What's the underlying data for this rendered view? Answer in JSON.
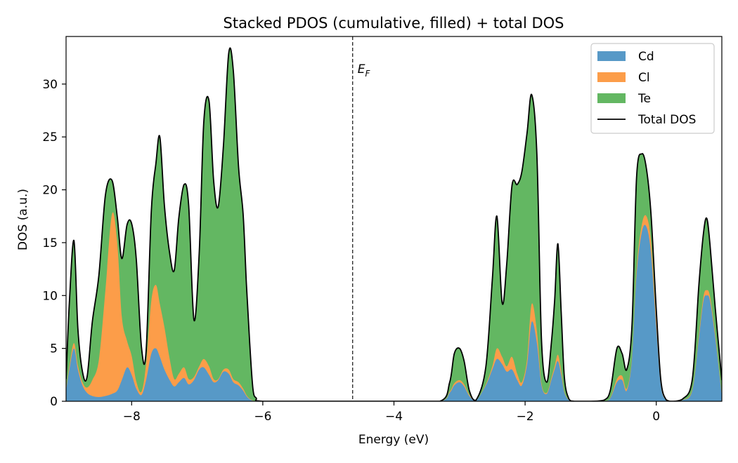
{
  "chart_data": {
    "type": "area",
    "title": "Stacked PDOS (cumulative, filled) + total DOS",
    "xlabel": "Energy (eV)",
    "ylabel": "DOS (a.u.)",
    "xlim": [
      -9.0,
      1.0
    ],
    "ylim": [
      0,
      34.5
    ],
    "x_ticks": [
      -8,
      -6,
      -4,
      -2,
      0
    ],
    "x_tick_labels": [
      "−8",
      "−6",
      "−4",
      "−2",
      "0"
    ],
    "y_ticks": [
      0,
      5,
      10,
      15,
      20,
      25,
      30
    ],
    "y_tick_labels": [
      "0",
      "5",
      "10",
      "15",
      "20",
      "25",
      "30"
    ],
    "grid": false,
    "legend_position": "top-right",
    "fermi_level": {
      "x": -4.63,
      "label_main": "E",
      "label_sub": "F",
      "style": "dashed"
    },
    "x": [
      -9.0,
      -8.95,
      -8.88,
      -8.82,
      -8.75,
      -8.68,
      -8.6,
      -8.5,
      -8.4,
      -8.3,
      -8.22,
      -8.15,
      -8.07,
      -8.0,
      -7.93,
      -7.85,
      -7.78,
      -7.7,
      -7.63,
      -7.57,
      -7.5,
      -7.42,
      -7.35,
      -7.28,
      -7.2,
      -7.13,
      -7.05,
      -6.97,
      -6.9,
      -6.82,
      -6.75,
      -6.68,
      -6.6,
      -6.52,
      -6.45,
      -6.37,
      -6.3,
      -6.25,
      -6.2,
      -6.15,
      -6.1,
      -6.0,
      -5.0,
      -4.0,
      -3.3,
      -3.15,
      -3.08,
      -3.0,
      -2.93,
      -2.85,
      -2.75,
      -2.6,
      -2.5,
      -2.43,
      -2.35,
      -2.28,
      -2.2,
      -2.12,
      -2.05,
      -1.97,
      -1.9,
      -1.82,
      -1.75,
      -1.67,
      -1.6,
      -1.55,
      -1.5,
      -1.45,
      -1.4,
      -1.33,
      -1.25,
      -1.0,
      -0.8,
      -0.7,
      -0.6,
      -0.52,
      -0.45,
      -0.37,
      -0.3,
      -0.22,
      -0.15,
      -0.08,
      0.0,
      0.07,
      0.15,
      0.25,
      0.4,
      0.55,
      0.65,
      0.72,
      0.77,
      0.82,
      0.9,
      1.0
    ],
    "series": [
      {
        "name": "Cd",
        "color": "#5799c7",
        "values": [
          1.0,
          3.0,
          5.0,
          3.0,
          1.5,
          0.8,
          0.5,
          0.4,
          0.5,
          0.7,
          1.0,
          2.0,
          3.2,
          2.5,
          1.2,
          0.6,
          2.0,
          4.5,
          5.0,
          4.2,
          3.0,
          2.0,
          1.4,
          1.8,
          2.2,
          1.6,
          2.0,
          3.0,
          3.2,
          2.5,
          1.8,
          2.0,
          2.8,
          2.6,
          1.8,
          1.5,
          1.0,
          0.5,
          0.2,
          0.05,
          0.0,
          0.0,
          0.0,
          0.0,
          0.0,
          0.8,
          1.5,
          1.8,
          1.4,
          0.5,
          0.05,
          1.5,
          3.0,
          4.0,
          3.5,
          2.8,
          3.0,
          2.0,
          1.5,
          3.5,
          7.5,
          5.5,
          1.5,
          0.7,
          2.0,
          3.0,
          3.8,
          2.5,
          0.8,
          0.1,
          0.0,
          0.0,
          0.02,
          0.3,
          1.8,
          2.0,
          1.0,
          4.0,
          12.0,
          16.0,
          16.5,
          14.0,
          7.0,
          1.5,
          0.1,
          0.0,
          0.1,
          1.0,
          6.0,
          9.5,
          10.0,
          9.5,
          6.0,
          0.5
        ]
      },
      {
        "name": "Cl",
        "color": "#fc9d49",
        "values": [
          0.1,
          0.3,
          0.5,
          0.4,
          0.3,
          0.5,
          1.5,
          3.5,
          10.0,
          17.0,
          14.0,
          6.0,
          2.5,
          1.8,
          0.7,
          0.3,
          1.5,
          5.0,
          6.0,
          5.0,
          4.0,
          2.0,
          0.7,
          0.8,
          1.0,
          0.5,
          0.3,
          0.3,
          0.8,
          0.8,
          0.3,
          0.1,
          0.2,
          0.4,
          0.3,
          0.3,
          0.2,
          0.1,
          0.05,
          0.02,
          0.0,
          0.0,
          0.0,
          0.0,
          0.0,
          0.1,
          0.2,
          0.2,
          0.2,
          0.1,
          0.0,
          0.1,
          0.3,
          1.0,
          0.7,
          0.5,
          1.2,
          0.6,
          0.3,
          0.5,
          1.7,
          1.1,
          0.2,
          0.1,
          0.2,
          0.3,
          0.6,
          0.4,
          0.1,
          0.02,
          0.0,
          0.0,
          0.0,
          0.05,
          0.3,
          0.4,
          0.2,
          0.2,
          0.5,
          0.7,
          1.0,
          1.1,
          0.7,
          0.2,
          0.02,
          0.0,
          0.02,
          0.1,
          0.3,
          0.4,
          0.5,
          0.4,
          0.3,
          0.1
        ]
      },
      {
        "name": "Te",
        "color": "#63b762",
        "values": [
          1.0,
          6.0,
          9.7,
          3.5,
          1.0,
          1.0,
          5.5,
          8.0,
          9.0,
          3.2,
          2.5,
          5.5,
          11.0,
          12.5,
          11.6,
          4.2,
          1.2,
          8.5,
          11.5,
          15.8,
          11.5,
          10.0,
          10.3,
          14.8,
          17.3,
          16.4,
          5.4,
          10.7,
          22.4,
          25.1,
          18.8,
          16.3,
          21.2,
          29.9,
          29.2,
          20.4,
          16.5,
          10.5,
          5.3,
          1.1,
          0.3,
          0.0,
          0.0,
          0.0,
          0.0,
          0.9,
          2.8,
          3.0,
          2.2,
          0.4,
          0.05,
          1.6,
          8.2,
          12.5,
          5.1,
          9.7,
          16.2,
          17.9,
          19.9,
          21.4,
          19.8,
          16.7,
          4.1,
          1.0,
          3.3,
          6.2,
          10.5,
          5.6,
          1.3,
          0.08,
          0.0,
          0.0,
          0.08,
          0.7,
          2.9,
          2.1,
          1.8,
          3.0,
          8.7,
          6.7,
          4.5,
          2.6,
          1.0,
          0.3,
          0.03,
          0.0,
          0.08,
          1.0,
          4.7,
          6.0,
          6.8,
          4.9,
          2.5,
          1.4
        ]
      }
    ],
    "total": {
      "name": "Total DOS",
      "color": "#000000"
    }
  }
}
